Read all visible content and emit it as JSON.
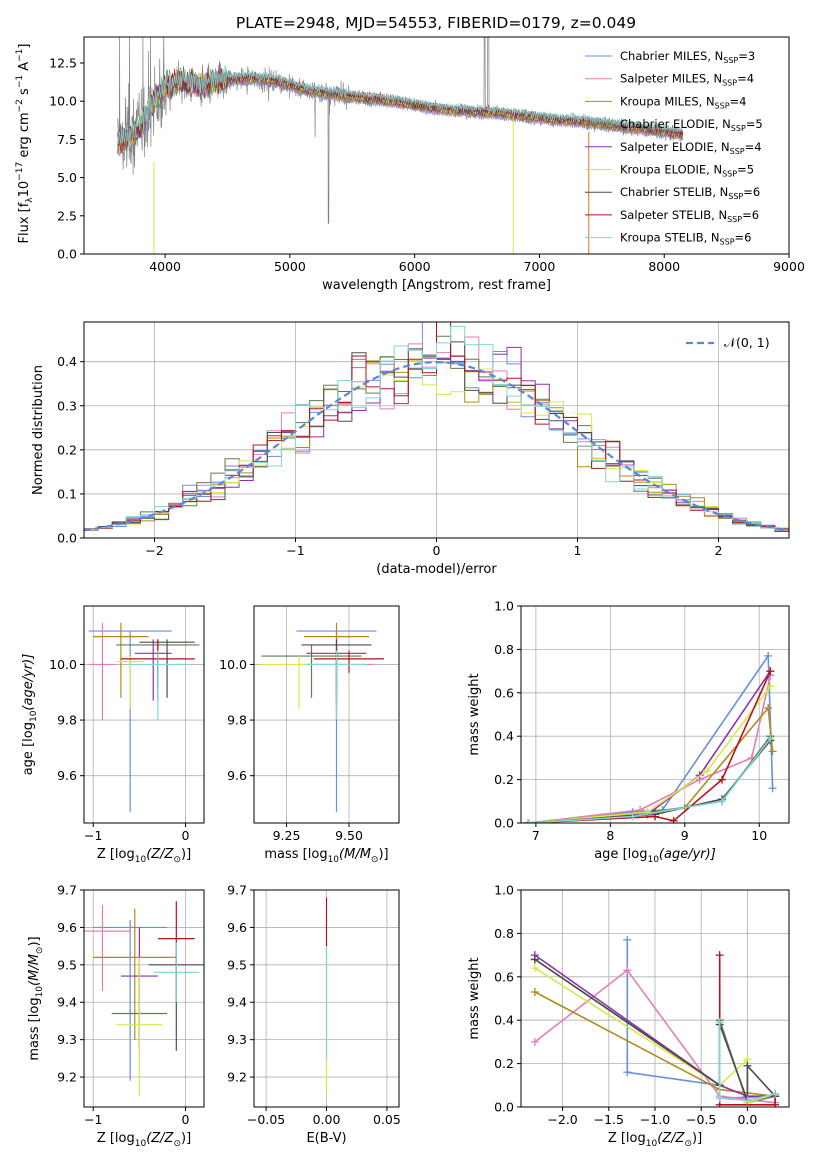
{
  "figure_title": "PLATE=2948, MJD=54553, FIBERID=0179, z=0.049",
  "models": [
    {
      "name": "Chabrier MILES",
      "nssp": "3",
      "color": "#6a8fdc"
    },
    {
      "name": "Salpeter MILES",
      "nssp": "4",
      "color": "#e37fb7"
    },
    {
      "name": "Kroupa MILES",
      "nssp": "4",
      "color": "#b28a1c"
    },
    {
      "name": "Chabrier ELODIE",
      "nssp": "5",
      "color": "#5e7f4a"
    },
    {
      "name": "Salpeter ELODIE",
      "nssp": "4",
      "color": "#8e2fae"
    },
    {
      "name": "Kroupa ELODIE",
      "nssp": "5",
      "color": "#d8e84a"
    },
    {
      "name": "Chabrier STELIB",
      "nssp": "6",
      "color": "#4d4d4d"
    },
    {
      "name": "Salpeter STELIB",
      "nssp": "6",
      "color": "#b5121b"
    },
    {
      "name": "Kroupa STELIB",
      "nssp": "6",
      "color": "#7fd6d6"
    }
  ],
  "chart_data": [
    {
      "id": "spectrum",
      "type": "line",
      "xlabel": "wavelength [Angstrom, rest frame]",
      "ylabel": "Flux [f",
      "ylabel_sub": "λ",
      "ylabel_rest1": "10",
      "ylabel_sup1": "−17",
      "ylabel_rest2": " erg cm",
      "ylabel_sup2": "−2",
      "ylabel_rest3": " s",
      "ylabel_sup3": "−1",
      "ylabel_rest4": " A",
      "ylabel_sup4": "−1",
      "ylabel_end": "]",
      "xlim": [
        3350,
        9000
      ],
      "ylim": [
        0,
        14.2
      ],
      "xticks": [
        4000,
        5000,
        6000,
        7000,
        8000,
        9000
      ],
      "xtick_labels": [
        "4000",
        "5000",
        "6000",
        "7000",
        "8000",
        "9000"
      ],
      "yticks": [
        0,
        2.5,
        5,
        7.5,
        10,
        12.5
      ],
      "ytick_labels": [
        "0.0",
        "2.5",
        "5.0",
        "7.5",
        "10.0",
        "12.5"
      ],
      "data_color": "#808080",
      "continuum": {
        "x": [
          3620,
          3700,
          3800,
          3900,
          4000,
          4100,
          4300,
          4500,
          4700,
          4900,
          5100,
          5300,
          5500,
          5700,
          5900,
          6100,
          6300,
          6500,
          6700,
          6900,
          7100,
          7300,
          7500,
          7700,
          7900,
          8100,
          8150
        ],
        "y": [
          7.2,
          7.6,
          8.3,
          9.8,
          10.9,
          11.3,
          11.0,
          11.4,
          11.5,
          11.3,
          10.8,
          10.5,
          10.3,
          10.1,
          9.9,
          9.6,
          9.4,
          9.3,
          9.2,
          9.0,
          8.8,
          8.7,
          8.5,
          8.3,
          8.1,
          7.9,
          7.8
        ]
      }
    },
    {
      "id": "residuals",
      "type": "line",
      "xlabel": "(data-model)/error",
      "ylabel": "Normed distribution",
      "legend": "𝒩(0, 1)",
      "legend_color": "#5b87d6",
      "xlim": [
        -2.5,
        2.5
      ],
      "ylim": [
        0,
        0.49
      ],
      "xticks": [
        -2,
        -1,
        0,
        1,
        2
      ],
      "xtick_labels": [
        "−2",
        "−1",
        "0",
        "1",
        "2"
      ],
      "yticks": [
        0,
        0.1,
        0.2,
        0.3,
        0.4
      ],
      "ytick_labels": [
        "0.0",
        "0.1",
        "0.2",
        "0.3",
        "0.4"
      ],
      "bin_width": 0.1
    },
    {
      "id": "age-vs-Z",
      "type": "scatter",
      "xlabel": "Z [log",
      "xlabel_sub": "10",
      "xlabel_rest": "(Z/Z",
      "xlabel_sub2": "⊙",
      "xlabel_end": ")]",
      "ylabel": "age  [log",
      "ylabel_sub": "10",
      "ylabel_rest": "(age/yr)]",
      "xlim": [
        -1.1,
        0.2
      ],
      "ylim": [
        9.43,
        10.21
      ],
      "xticks": [
        -1,
        0
      ],
      "xtick_labels": [
        "−1",
        "0"
      ],
      "yticks": [
        9.6,
        9.8,
        10.0
      ],
      "ytick_labels": [
        "9.6",
        "9.8",
        "10.0"
      ],
      "points": [
        {
          "m": 0,
          "x": -0.6,
          "y": 10.12,
          "xe": 0.45,
          "yl": 0.65,
          "yh": 0.0
        },
        {
          "m": 1,
          "x": -0.9,
          "y": 10.0,
          "xe": 0.15,
          "yl": 0.2,
          "yh": 0.15
        },
        {
          "m": 2,
          "x": -0.7,
          "y": 10.1,
          "xe": 0.3,
          "yl": 0.22,
          "yh": 0.05
        },
        {
          "m": 3,
          "x": -0.3,
          "y": 10.07,
          "xe": 0.45,
          "yl": 0.2,
          "yh": 0.02
        },
        {
          "m": 4,
          "x": -0.35,
          "y": 10.04,
          "xe": 0.2,
          "yl": 0.17,
          "yh": 0.05
        },
        {
          "m": 5,
          "x": -0.6,
          "y": 10.01,
          "xe": 0.15,
          "yl": 0.17,
          "yh": 0.02
        },
        {
          "m": 6,
          "x": -0.2,
          "y": 10.08,
          "xe": 0.3,
          "yl": 0.2,
          "yh": 0.01
        },
        {
          "m": 7,
          "x": -0.3,
          "y": 10.02,
          "xe": 0.4,
          "yl": 0.1,
          "yh": 0.07
        },
        {
          "m": 8,
          "x": -0.3,
          "y": 10.0,
          "xe": 0.3,
          "yl": 0.2,
          "yh": 0.05
        }
      ]
    },
    {
      "id": "age-vs-mass",
      "type": "scatter",
      "xlabel": "mass [log",
      "xlabel_sub": "10",
      "xlabel_rest": "(M/M",
      "xlabel_sub2": "⊙",
      "xlabel_end": ")]",
      "xlim": [
        9.12,
        9.7
      ],
      "ylim": [
        9.43,
        10.21
      ],
      "xticks": [
        9.25,
        9.5
      ],
      "xtick_labels": [
        "9.25",
        "9.50"
      ],
      "yticks": [
        9.6,
        9.8,
        10.0
      ],
      "ytick_labels": [
        "9.6",
        "9.8",
        "10.0"
      ],
      "points": [
        {
          "m": 0,
          "x": 9.45,
          "y": 10.12,
          "xe": 0.16,
          "yl": 0.65,
          "yh": 0.0
        },
        {
          "m": 1,
          "x": 9.45,
          "y": 10.0,
          "xe": 0.15,
          "yl": 0.2,
          "yh": 0.1
        },
        {
          "m": 2,
          "x": 9.45,
          "y": 10.1,
          "xe": 0.13,
          "yl": 0.2,
          "yh": 0.05
        },
        {
          "m": 3,
          "x": 9.35,
          "y": 10.03,
          "xe": 0.2,
          "yl": 0.15,
          "yh": 0.04
        },
        {
          "m": 4,
          "x": 9.45,
          "y": 10.04,
          "xe": 0.12,
          "yl": 0.2,
          "yh": 0.02
        },
        {
          "m": 5,
          "x": 9.3,
          "y": 10.0,
          "xe": 0.15,
          "yl": 0.16,
          "yh": 0.03
        },
        {
          "m": 6,
          "x": 9.45,
          "y": 10.07,
          "xe": 0.14,
          "yl": 0.2,
          "yh": 0.02
        },
        {
          "m": 7,
          "x": 9.5,
          "y": 10.02,
          "xe": 0.14,
          "yl": 0.05,
          "yh": 0.03
        },
        {
          "m": 8,
          "x": 9.45,
          "y": 10.0,
          "xe": 0.12,
          "yl": 0.2,
          "yh": 0.05
        }
      ]
    },
    {
      "id": "weight-vs-age",
      "type": "line",
      "xlabel": "age  [log",
      "xlabel_sub": "10",
      "xlabel_rest": "(age/yr)]",
      "ylabel": "mass weight",
      "xlim": [
        6.8,
        10.4
      ],
      "ylim": [
        0,
        1
      ],
      "xticks": [
        7,
        8,
        9,
        10
      ],
      "xtick_labels": [
        "7",
        "8",
        "9",
        "10"
      ],
      "yticks": [
        0,
        0.2,
        0.4,
        0.6,
        0.8,
        1.0
      ],
      "ytick_labels": [
        "0.0",
        "0.2",
        "0.4",
        "0.6",
        "0.8",
        "1.0"
      ],
      "series": [
        {
          "m": 0,
          "x": [
            6.9,
            8.3,
            8.7,
            10.12,
            10.18
          ],
          "y": [
            0.0,
            0.05,
            0.06,
            0.77,
            0.16
          ]
        },
        {
          "m": 1,
          "x": [
            6.9,
            8.4,
            9.2,
            9.9,
            10.15
          ],
          "y": [
            0.0,
            0.06,
            0.2,
            0.3,
            0.68
          ]
        },
        {
          "m": 2,
          "x": [
            6.9,
            8.5,
            9.0,
            10.12,
            10.18
          ],
          "y": [
            0.0,
            0.05,
            0.07,
            0.53,
            0.33
          ]
        },
        {
          "m": 3,
          "x": [
            6.9,
            8.6,
            9.5,
            10.15
          ],
          "y": [
            0.0,
            0.05,
            0.1,
            0.4
          ]
        },
        {
          "m": 4,
          "x": [
            6.9,
            8.5,
            9.2,
            10.15
          ],
          "y": [
            0.0,
            0.04,
            0.22,
            0.7
          ]
        },
        {
          "m": 5,
          "x": [
            6.9,
            8.5,
            9.3,
            10.15
          ],
          "y": [
            0.0,
            0.05,
            0.24,
            0.63
          ]
        },
        {
          "m": 6,
          "x": [
            6.9,
            8.6,
            9.5,
            10.15
          ],
          "y": [
            0.0,
            0.04,
            0.11,
            0.38
          ]
        },
        {
          "m": 7,
          "x": [
            6.9,
            8.6,
            8.85,
            9.5,
            10.15
          ],
          "y": [
            0.0,
            0.03,
            0.01,
            0.2,
            0.7
          ]
        },
        {
          "m": 8,
          "x": [
            6.9,
            8.3,
            9.5,
            10.15
          ],
          "y": [
            0.0,
            0.03,
            0.1,
            0.39
          ]
        }
      ]
    },
    {
      "id": "mass-vs-Z",
      "type": "scatter",
      "xlabel": "Z [log",
      "xlabel_sub": "10",
      "xlabel_rest": "(Z/Z",
      "xlabel_sub2": "⊙",
      "xlabel_end": ")]",
      "ylabel": "mass [log",
      "ylabel_sub": "10",
      "ylabel_rest": "(M/M",
      "ylabel_sub2": "⊙",
      "ylabel_end": ")]",
      "xlim": [
        -1.1,
        0.2
      ],
      "ylim": [
        9.12,
        9.7
      ],
      "xticks": [
        -1,
        0
      ],
      "xtick_labels": [
        "−1",
        "0"
      ],
      "yticks": [
        9.2,
        9.3,
        9.4,
        9.5,
        9.6,
        9.7
      ],
      "ytick_labels": [
        "9.2",
        "9.3",
        "9.4",
        "9.5",
        "9.6",
        "9.7"
      ],
      "points": [
        {
          "m": 0,
          "x": -0.6,
          "y": 9.6,
          "xe": 0.4,
          "yl": 0.41,
          "yh": 0.02
        },
        {
          "m": 1,
          "x": -0.9,
          "y": 9.59,
          "xe": 0.3,
          "yl": 0.16,
          "yh": 0.07
        },
        {
          "m": 2,
          "x": -0.55,
          "y": 9.52,
          "xe": 0.45,
          "yl": 0.22,
          "yh": 0.13
        },
        {
          "m": 3,
          "x": -0.5,
          "y": 9.37,
          "xe": 0.3,
          "yl": 0.1,
          "yh": 0.13
        },
        {
          "m": 4,
          "x": -0.5,
          "y": 9.47,
          "xe": 0.2,
          "yl": 0.18,
          "yh": 0.13
        },
        {
          "m": 5,
          "x": -0.5,
          "y": 9.34,
          "xe": 0.25,
          "yl": 0.19,
          "yh": 0.18
        },
        {
          "m": 6,
          "x": -0.1,
          "y": 9.5,
          "xe": 0.3,
          "yl": 0.23,
          "yh": 0.06
        },
        {
          "m": 7,
          "x": -0.1,
          "y": 9.57,
          "xe": 0.2,
          "yl": 0.15,
          "yh": 0.1
        },
        {
          "m": 8,
          "x": -0.1,
          "y": 9.48,
          "xe": 0.25,
          "yl": 0.08,
          "yh": 0.08
        }
      ]
    },
    {
      "id": "mass-vs-EBV",
      "type": "scatter",
      "xlabel": "E(B-V)",
      "xlim": [
        -0.06,
        0.06
      ],
      "ylim": [
        9.12,
        9.7
      ],
      "xticks": [
        -0.05,
        0,
        0.05
      ],
      "xtick_labels": [
        "−0.05",
        "0.00",
        "0.05"
      ],
      "yticks": [
        9.2,
        9.3,
        9.4,
        9.5,
        9.6,
        9.7
      ],
      "ytick_labels": [
        "9.2",
        "9.3",
        "9.4",
        "9.5",
        "9.6",
        "9.7"
      ],
      "points": [
        {
          "m": 5,
          "x": 0,
          "y": 9.4,
          "xe": 0,
          "yl": 0.24,
          "yh": 0.14
        },
        {
          "m": 7,
          "x": 0,
          "y": 9.6,
          "xe": 0,
          "yl": 0.05,
          "yh": 0.08
        },
        {
          "m": 8,
          "x": 0,
          "y": 9.45,
          "xe": 0,
          "yl": 0.2,
          "yh": 0.1
        }
      ]
    },
    {
      "id": "weight-vs-Z",
      "type": "line",
      "xlabel": "Z [log",
      "xlabel_sub": "10",
      "xlabel_rest": "(Z/Z",
      "xlabel_sub2": "⊙",
      "xlabel_end": ")]",
      "ylabel": "mass weight",
      "xlim": [
        -2.45,
        0.45
      ],
      "ylim": [
        0,
        1
      ],
      "xticks": [
        -2,
        -1.5,
        -1,
        -0.5,
        0
      ],
      "xtick_labels": [
        "−2.0",
        "−1.5",
        "−1.0",
        "−0.5",
        "0.0"
      ],
      "yticks": [
        0,
        0.2,
        0.4,
        0.6,
        0.8,
        1.0
      ],
      "ytick_labels": [
        "0.0",
        "0.2",
        "0.4",
        "0.6",
        "0.8",
        "1.0"
      ],
      "series": [
        {
          "m": 0,
          "x": [
            -1.3,
            -1.3,
            -0.3,
            -0.3,
            0.3
          ],
          "y": [
            0.77,
            0.16,
            0.1,
            0.04,
            0.05
          ]
        },
        {
          "m": 1,
          "x": [
            -2.3,
            -1.3,
            -0.3,
            0.3
          ],
          "y": [
            0.3,
            0.63,
            0.05,
            0.02
          ]
        },
        {
          "m": 2,
          "x": [
            -2.3,
            -0.3,
            0.3
          ],
          "y": [
            0.53,
            0.08,
            0.05
          ]
        },
        {
          "m": 3,
          "x": [
            -2.3,
            -0.3,
            -0.3,
            0.0,
            0.3
          ],
          "y": [
            0.68,
            0.1,
            0.4,
            0.02,
            0.05
          ]
        },
        {
          "m": 4,
          "x": [
            -2.3,
            -0.3,
            0.0,
            0.3
          ],
          "y": [
            0.7,
            0.1,
            0.05,
            0.05
          ]
        },
        {
          "m": 5,
          "x": [
            -2.3,
            -0.3,
            0.0,
            0.0,
            0.3
          ],
          "y": [
            0.64,
            0.1,
            0.22,
            0.02,
            0.06
          ]
        },
        {
          "m": 6,
          "x": [
            -2.3,
            -0.3,
            -0.3,
            0.0,
            0.0,
            0.3
          ],
          "y": [
            0.68,
            0.1,
            0.38,
            0.03,
            0.19,
            0.05
          ]
        },
        {
          "m": 7,
          "x": [
            -0.3,
            -0.3,
            0.3,
            0.3
          ],
          "y": [
            0.7,
            0.01,
            0.01,
            0.06
          ]
        },
        {
          "m": 8,
          "x": [
            -0.3,
            -0.3,
            0.0,
            0.3
          ],
          "y": [
            0.39,
            0.04,
            0.03,
            0.06
          ]
        }
      ]
    }
  ]
}
